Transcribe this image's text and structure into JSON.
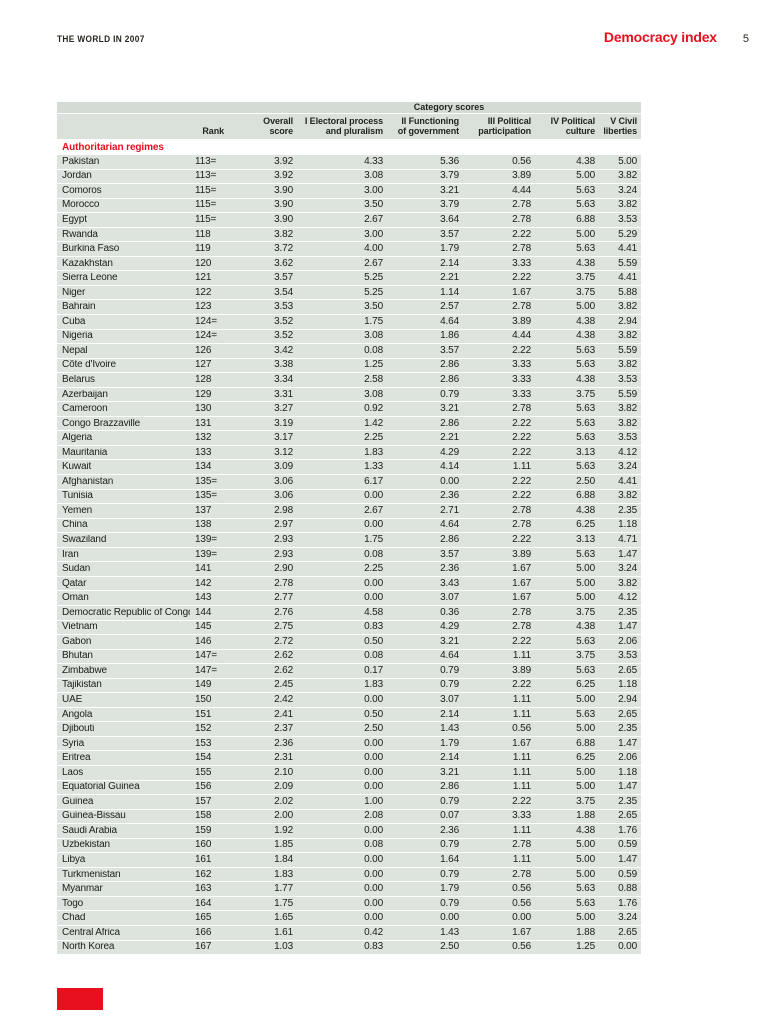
{
  "header": {
    "journal": "THE WORLD IN 2007",
    "title": "Democracy index",
    "page_number": "5"
  },
  "colors": {
    "accent_red": "#e8101e",
    "row_bg": "#dde3dd",
    "header_band_bg": "#d4dbd5",
    "column_header_bg": "#dae0da",
    "text": "#20211c"
  },
  "table": {
    "group_header": "Category scores",
    "section_label": "Authoritarian regimes",
    "columns": [
      "",
      "Rank",
      "Overall\nscore",
      "I Electoral process\nand pluralism",
      "II Functioning\nof government",
      "III Political\nparticipation",
      "IV Political\nculture",
      "V Civil\nliberties"
    ],
    "rows": [
      [
        "Pakistan",
        "113=",
        "3.92",
        "4.33",
        "5.36",
        "0.56",
        "4.38",
        "5.00"
      ],
      [
        "Jordan",
        "113=",
        "3.92",
        "3.08",
        "3.79",
        "3.89",
        "5.00",
        "3.82"
      ],
      [
        "Comoros",
        "115=",
        "3.90",
        "3.00",
        "3.21",
        "4.44",
        "5.63",
        "3.24"
      ],
      [
        "Morocco",
        "115=",
        "3.90",
        "3.50",
        "3.79",
        "2.78",
        "5.63",
        "3.82"
      ],
      [
        "Egypt",
        "115=",
        "3.90",
        "2.67",
        "3.64",
        "2.78",
        "6.88",
        "3.53"
      ],
      [
        "Rwanda",
        "118",
        "3.82",
        "3.00",
        "3.57",
        "2.22",
        "5.00",
        "5.29"
      ],
      [
        "Burkina Faso",
        "119",
        "3.72",
        "4.00",
        "1.79",
        "2.78",
        "5.63",
        "4.41"
      ],
      [
        "Kazakhstan",
        "120",
        "3.62",
        "2.67",
        "2.14",
        "3.33",
        "4.38",
        "5.59"
      ],
      [
        "Sierra Leone",
        "121",
        "3.57",
        "5.25",
        "2.21",
        "2.22",
        "3.75",
        "4.41"
      ],
      [
        "Niger",
        "122",
        "3.54",
        "5.25",
        "1.14",
        "1.67",
        "3.75",
        "5.88"
      ],
      [
        "Bahrain",
        "123",
        "3.53",
        "3.50",
        "2.57",
        "2.78",
        "5.00",
        "3.82"
      ],
      [
        "Cuba",
        "124=",
        "3.52",
        "1.75",
        "4.64",
        "3.89",
        "4.38",
        "2.94"
      ],
      [
        "Nigeria",
        "124=",
        "3.52",
        "3.08",
        "1.86",
        "4.44",
        "4.38",
        "3.82"
      ],
      [
        "Nepal",
        "126",
        "3.42",
        "0.08",
        "3.57",
        "2.22",
        "5.63",
        "5.59"
      ],
      [
        "Côte d'Ivoire",
        "127",
        "3.38",
        "1.25",
        "2.86",
        "3.33",
        "5.63",
        "3.82"
      ],
      [
        "Belarus",
        "128",
        "3.34",
        "2.58",
        "2.86",
        "3.33",
        "4.38",
        "3.53"
      ],
      [
        "Azerbaijan",
        "129",
        "3.31",
        "3.08",
        "0.79",
        "3.33",
        "3.75",
        "5.59"
      ],
      [
        "Cameroon",
        "130",
        "3.27",
        "0.92",
        "3.21",
        "2.78",
        "5.63",
        "3.82"
      ],
      [
        "Congo Brazzaville",
        "131",
        "3.19",
        "1.42",
        "2.86",
        "2.22",
        "5.63",
        "3.82"
      ],
      [
        "Algeria",
        "132",
        "3.17",
        "2.25",
        "2.21",
        "2.22",
        "5.63",
        "3.53"
      ],
      [
        "Mauritania",
        "133",
        "3.12",
        "1.83",
        "4.29",
        "2.22",
        "3.13",
        "4.12"
      ],
      [
        "Kuwait",
        "134",
        "3.09",
        "1.33",
        "4.14",
        "1.11",
        "5.63",
        "3.24"
      ],
      [
        "Afghanistan",
        "135=",
        "3.06",
        "6.17",
        "0.00",
        "2.22",
        "2.50",
        "4.41"
      ],
      [
        "Tunisia",
        "135=",
        "3.06",
        "0.00",
        "2.36",
        "2.22",
        "6.88",
        "3.82"
      ],
      [
        "Yemen",
        "137",
        "2.98",
        "2.67",
        "2.71",
        "2.78",
        "4.38",
        "2.35"
      ],
      [
        "China",
        "138",
        "2.97",
        "0.00",
        "4.64",
        "2.78",
        "6.25",
        "1.18"
      ],
      [
        "Swaziland",
        "139=",
        "2.93",
        "1.75",
        "2.86",
        "2.22",
        "3.13",
        "4.71"
      ],
      [
        "Iran",
        "139=",
        "2.93",
        "0.08",
        "3.57",
        "3.89",
        "5.63",
        "1.47"
      ],
      [
        "Sudan",
        "141",
        "2.90",
        "2.25",
        "2.36",
        "1.67",
        "5.00",
        "3.24"
      ],
      [
        "Qatar",
        "142",
        "2.78",
        "0.00",
        "3.43",
        "1.67",
        "5.00",
        "3.82"
      ],
      [
        "Oman",
        "143",
        "2.77",
        "0.00",
        "3.07",
        "1.67",
        "5.00",
        "4.12"
      ],
      [
        "Democratic Republic of Congo",
        "144",
        "2.76",
        "4.58",
        "0.36",
        "2.78",
        "3.75",
        "2.35"
      ],
      [
        "Vietnam",
        "145",
        "2.75",
        "0.83",
        "4.29",
        "2.78",
        "4.38",
        "1.47"
      ],
      [
        "Gabon",
        "146",
        "2.72",
        "0.50",
        "3.21",
        "2.22",
        "5.63",
        "2.06"
      ],
      [
        "Bhutan",
        "147=",
        "2.62",
        "0.08",
        "4.64",
        "1.11",
        "3.75",
        "3.53"
      ],
      [
        "Zimbabwe",
        "147=",
        "2.62",
        "0.17",
        "0.79",
        "3.89",
        "5.63",
        "2.65"
      ],
      [
        "Tajikistan",
        "149",
        "2.45",
        "1.83",
        "0.79",
        "2.22",
        "6.25",
        "1.18"
      ],
      [
        "UAE",
        "150",
        "2.42",
        "0.00",
        "3.07",
        "1.11",
        "5.00",
        "2.94"
      ],
      [
        "Angola",
        "151",
        "2.41",
        "0.50",
        "2.14",
        "1.11",
        "5.63",
        "2.65"
      ],
      [
        "Djibouti",
        "152",
        "2.37",
        "2.50",
        "1.43",
        "0.56",
        "5.00",
        "2.35"
      ],
      [
        "Syria",
        "153",
        "2.36",
        "0.00",
        "1.79",
        "1.67",
        "6.88",
        "1.47"
      ],
      [
        "Eritrea",
        "154",
        "2.31",
        "0.00",
        "2.14",
        "1.11",
        "6.25",
        "2.06"
      ],
      [
        "Laos",
        "155",
        "2.10",
        "0.00",
        "3.21",
        "1.11",
        "5.00",
        "1.18"
      ],
      [
        "Equatorial Guinea",
        "156",
        "2.09",
        "0.00",
        "2.86",
        "1.11",
        "5.00",
        "1.47"
      ],
      [
        "Guinea",
        "157",
        "2.02",
        "1.00",
        "0.79",
        "2.22",
        "3.75",
        "2.35"
      ],
      [
        "Guinea-Bissau",
        "158",
        "2.00",
        "2.08",
        "0.07",
        "3.33",
        "1.88",
        "2.65"
      ],
      [
        "Saudi Arabia",
        "159",
        "1.92",
        "0.00",
        "2.36",
        "1.11",
        "4.38",
        "1.76"
      ],
      [
        "Uzbekistan",
        "160",
        "1.85",
        "0.08",
        "0.79",
        "2.78",
        "5.00",
        "0.59"
      ],
      [
        "Libya",
        "161",
        "1.84",
        "0.00",
        "1.64",
        "1.11",
        "5.00",
        "1.47"
      ],
      [
        "Turkmenistan",
        "162",
        "1.83",
        "0.00",
        "0.79",
        "2.78",
        "5.00",
        "0.59"
      ],
      [
        "Myanmar",
        "163",
        "1.77",
        "0.00",
        "1.79",
        "0.56",
        "5.63",
        "0.88"
      ],
      [
        "Togo",
        "164",
        "1.75",
        "0.00",
        "0.79",
        "0.56",
        "5.63",
        "1.76"
      ],
      [
        "Chad",
        "165",
        "1.65",
        "0.00",
        "0.00",
        "0.00",
        "5.00",
        "3.24"
      ],
      [
        "Central Africa",
        "166",
        "1.61",
        "0.42",
        "1.43",
        "1.67",
        "1.88",
        "2.65"
      ],
      [
        "North Korea",
        "167",
        "1.03",
        "0.83",
        "2.50",
        "0.56",
        "1.25",
        "0.00"
      ]
    ]
  }
}
